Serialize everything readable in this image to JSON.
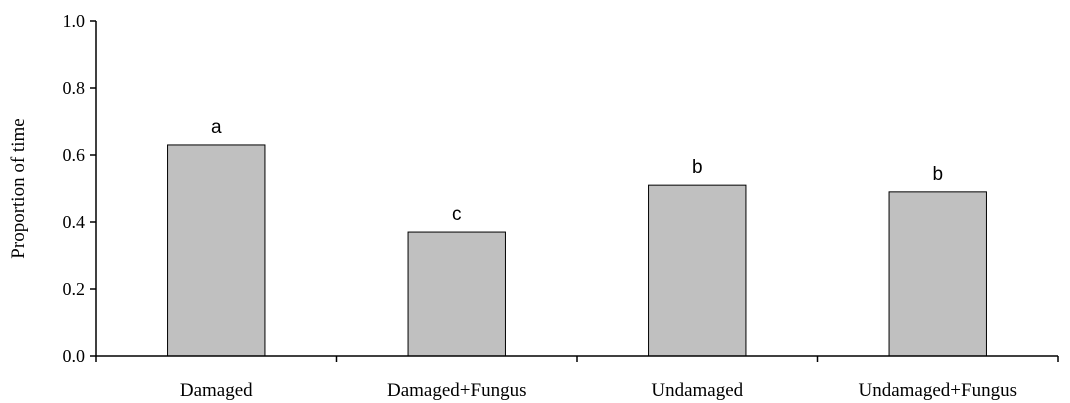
{
  "chart_data": {
    "type": "bar",
    "title": "",
    "xlabel": "",
    "ylabel": "Proportion of time",
    "ylim": [
      0,
      1.0
    ],
    "yticks": [
      "0.0",
      "0.2",
      "0.4",
      "0.6",
      "0.8",
      "1.0"
    ],
    "grid": false,
    "legend": "none",
    "bar_color": "#c0c0c0",
    "categories": [
      "Damaged",
      "Damaged+Fungus",
      "Undamaged",
      "Undamaged+Fungus"
    ],
    "values": [
      0.63,
      0.37,
      0.51,
      0.49
    ],
    "letters": [
      "a",
      "c",
      "b",
      "b"
    ]
  }
}
